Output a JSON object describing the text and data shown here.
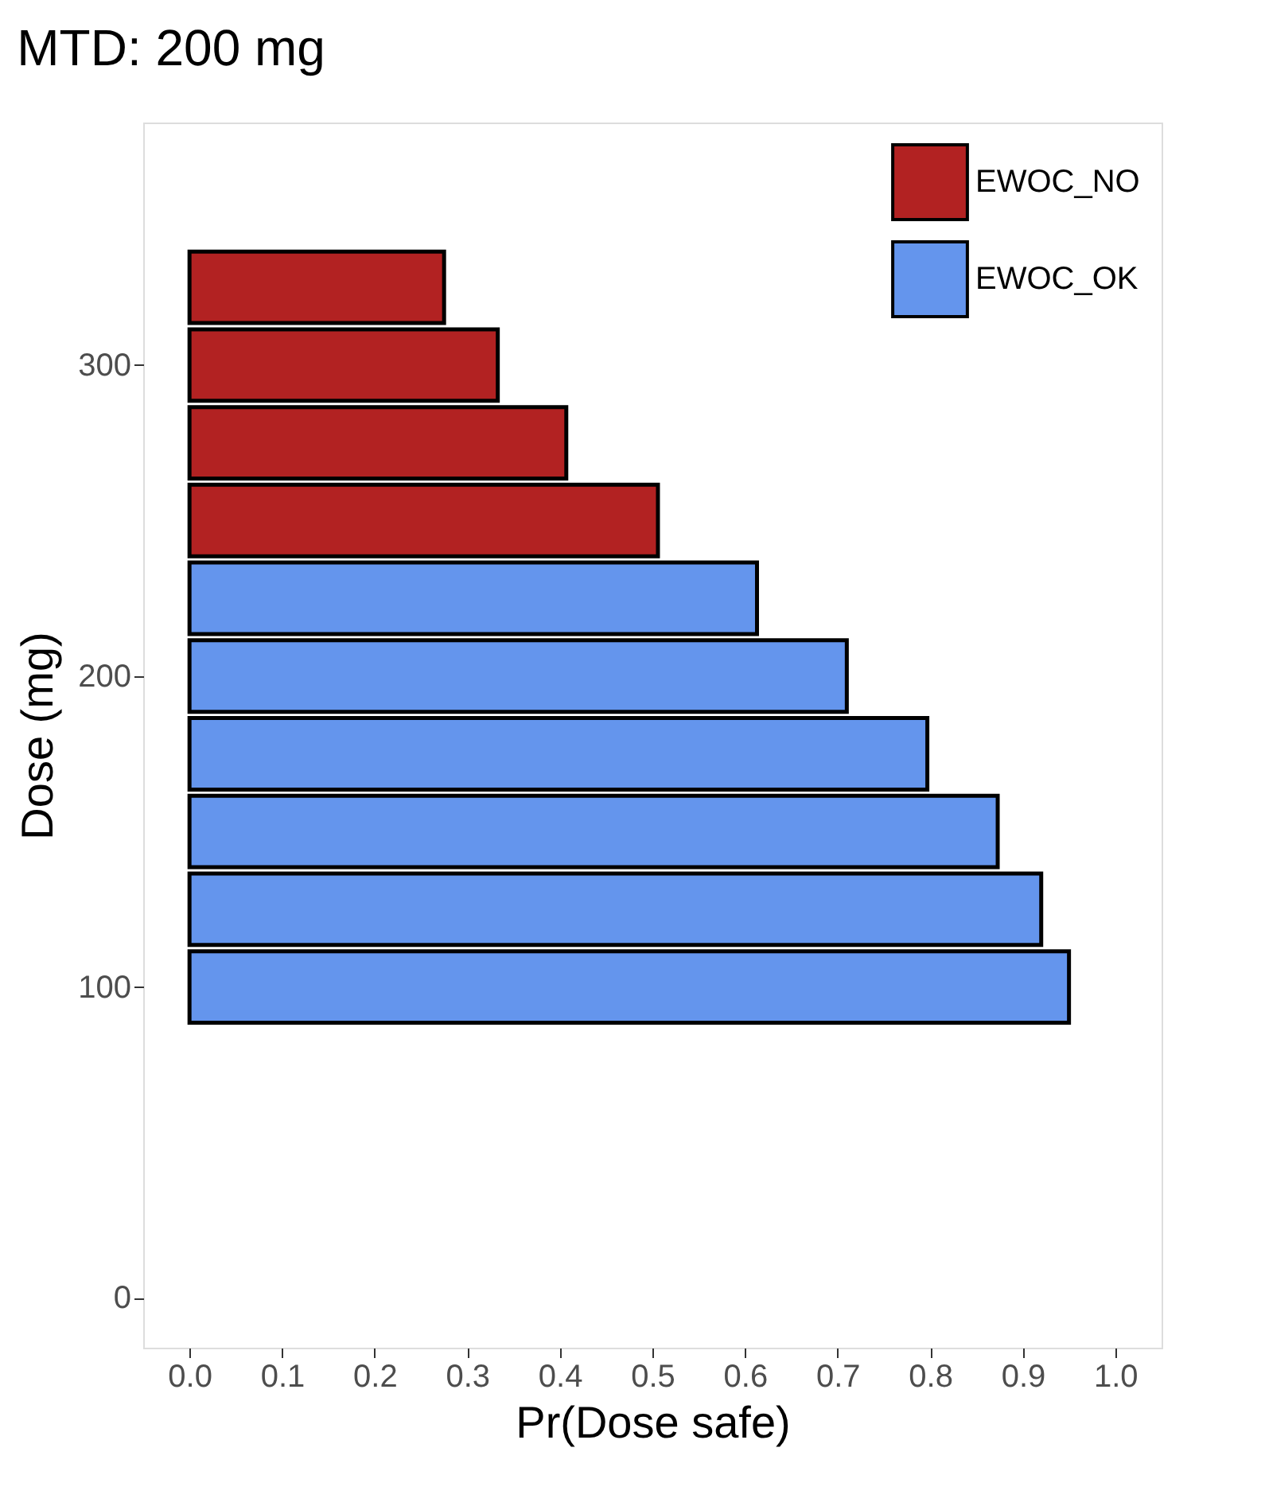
{
  "chart_data": {
    "type": "bar",
    "orientation": "horizontal",
    "title": "MTD: 200 mg",
    "xlabel": "Pr(Dose safe)",
    "ylabel": "Dose (mg)",
    "x": [
      100,
      125,
      150,
      175,
      200,
      225,
      250,
      275,
      300,
      325
    ],
    "series": [
      {
        "name": "EWOC_NO",
        "color": "#b22222",
        "values": [
          null,
          null,
          null,
          null,
          null,
          null,
          0.506,
          0.407,
          0.333,
          0.275
        ]
      },
      {
        "name": "EWOC_OK",
        "color": "#6495ed",
        "values": [
          0.95,
          0.92,
          0.873,
          0.797,
          0.71,
          0.613,
          null,
          null,
          null,
          null
        ]
      }
    ],
    "xlim": [
      -0.05,
      1.05
    ],
    "xticks": [
      {
        "value": 0,
        "label": "0.0"
      },
      0.1,
      0.2,
      0.3,
      0.4,
      0.5,
      0.6,
      0.7,
      0.8,
      0.9,
      {
        "value": 1,
        "label": "1.0"
      }
    ],
    "ylim": [
      -16,
      378
    ],
    "yticks": [
      0,
      100,
      200,
      300
    ],
    "legend": "top right",
    "grid": false
  }
}
